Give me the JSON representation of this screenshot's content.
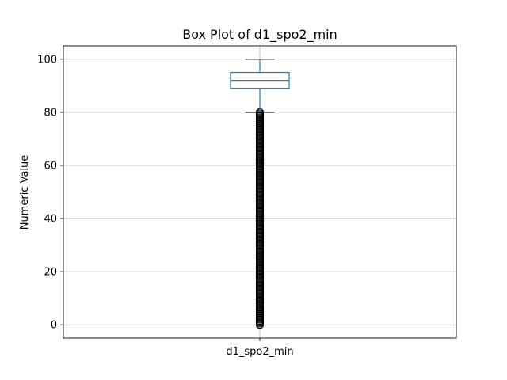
{
  "chart_data": {
    "type": "box",
    "title": "Box Plot of d1_spo2_min",
    "xlabel": "",
    "ylabel": "Numeric Value",
    "categories": [
      "d1_spo2_min"
    ],
    "ylim": [
      -5,
      105
    ],
    "yticks": [
      0,
      20,
      40,
      60,
      80,
      100
    ],
    "grid": true,
    "box": {
      "whisker_low": 80,
      "q1": 89,
      "median": 92,
      "q3": 95,
      "whisker_high": 100
    },
    "outliers_range": [
      0,
      80
    ],
    "colors": {
      "box": "#1f77b4",
      "median": "#2ca02c",
      "whisker": "#1f77b4",
      "caps": "#000000",
      "outlier": "#000000",
      "grid": "#b0b0b0"
    }
  }
}
